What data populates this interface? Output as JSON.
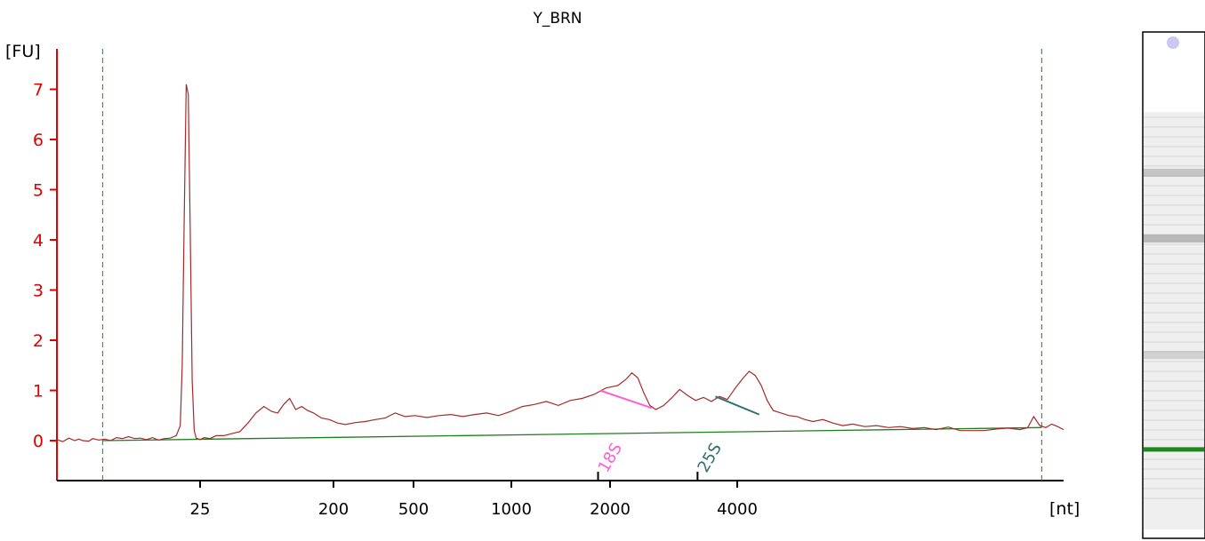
{
  "chart_data": {
    "type": "line",
    "title": "Y_BRN",
    "ylabel": "[FU]",
    "xlabel": "[nt]",
    "yticks": [
      0,
      1,
      2,
      3,
      4,
      5,
      6,
      7
    ],
    "ytick_labels": [
      "0",
      "1",
      "2",
      "3",
      "4",
      "5",
      "6",
      "7"
    ],
    "xticks": [
      "25",
      "200",
      "500",
      "1000",
      "2000",
      "4000"
    ],
    "ylim": [
      -0.8,
      7.9
    ],
    "axis_color": "#e00000",
    "trace_color": "#a52a2a",
    "baseline_color": "#1e7f1e",
    "marker_color": "#3c9a3c",
    "series": [
      {
        "values": [
          [
            0,
            0.02
          ],
          [
            3,
            -0.02
          ],
          [
            6,
            0.05
          ],
          [
            9,
            0.0
          ],
          [
            11,
            0.03
          ],
          [
            13,
            0.0
          ],
          [
            16,
            -0.01
          ],
          [
            18,
            0.04
          ],
          [
            21,
            0.01
          ],
          [
            24,
            0.03
          ],
          [
            27,
            0.0
          ],
          [
            30,
            0.06
          ],
          [
            33,
            0.04
          ],
          [
            36,
            0.08
          ],
          [
            39,
            0.04
          ],
          [
            42,
            0.05
          ],
          [
            45,
            0.02
          ],
          [
            48,
            0.06
          ],
          [
            51,
            0.01
          ],
          [
            54,
            0.04
          ],
          [
            57,
            0.05
          ],
          [
            60,
            0.1
          ],
          [
            62,
            0.3
          ],
          [
            63,
            1.5
          ],
          [
            64,
            4.5
          ],
          [
            65,
            7.1
          ],
          [
            66,
            6.9
          ],
          [
            67,
            4.2
          ],
          [
            68,
            1.2
          ],
          [
            69,
            0.2
          ],
          [
            70,
            0.05
          ],
          [
            72,
            0.02
          ],
          [
            74,
            0.06
          ],
          [
            77,
            0.04
          ],
          [
            80,
            0.1
          ],
          [
            84,
            0.1
          ],
          [
            88,
            0.14
          ],
          [
            92,
            0.18
          ],
          [
            96,
            0.35
          ],
          [
            100,
            0.55
          ],
          [
            104,
            0.68
          ],
          [
            108,
            0.58
          ],
          [
            111,
            0.55
          ],
          [
            114,
            0.72
          ],
          [
            117,
            0.84
          ],
          [
            120,
            0.62
          ],
          [
            123,
            0.68
          ],
          [
            126,
            0.6
          ],
          [
            129,
            0.55
          ],
          [
            133,
            0.45
          ],
          [
            137,
            0.42
          ],
          [
            141,
            0.35
          ],
          [
            145,
            0.32
          ],
          [
            150,
            0.36
          ],
          [
            155,
            0.38
          ],
          [
            160,
            0.42
          ],
          [
            165,
            0.45
          ],
          [
            170,
            0.55
          ],
          [
            175,
            0.48
          ],
          [
            180,
            0.5
          ],
          [
            186,
            0.46
          ],
          [
            192,
            0.5
          ],
          [
            198,
            0.52
          ],
          [
            204,
            0.48
          ],
          [
            210,
            0.52
          ],
          [
            216,
            0.55
          ],
          [
            222,
            0.5
          ],
          [
            228,
            0.58
          ],
          [
            234,
            0.68
          ],
          [
            240,
            0.72
          ],
          [
            246,
            0.78
          ],
          [
            252,
            0.7
          ],
          [
            258,
            0.8
          ],
          [
            264,
            0.84
          ],
          [
            270,
            0.92
          ],
          [
            276,
            1.05
          ],
          [
            282,
            1.1
          ],
          [
            286,
            1.22
          ],
          [
            289,
            1.35
          ],
          [
            292,
            1.25
          ],
          [
            295,
            0.95
          ],
          [
            298,
            0.7
          ],
          [
            301,
            0.62
          ],
          [
            305,
            0.7
          ],
          [
            309,
            0.85
          ],
          [
            313,
            1.02
          ],
          [
            317,
            0.9
          ],
          [
            321,
            0.8
          ],
          [
            325,
            0.86
          ],
          [
            329,
            0.78
          ],
          [
            333,
            0.88
          ],
          [
            337,
            0.82
          ],
          [
            341,
            1.05
          ],
          [
            345,
            1.25
          ],
          [
            348,
            1.38
          ],
          [
            351,
            1.3
          ],
          [
            354,
            1.1
          ],
          [
            357,
            0.8
          ],
          [
            360,
            0.6
          ],
          [
            364,
            0.55
          ],
          [
            368,
            0.5
          ],
          [
            372,
            0.48
          ],
          [
            376,
            0.42
          ],
          [
            380,
            0.38
          ],
          [
            385,
            0.42
          ],
          [
            390,
            0.35
          ],
          [
            395,
            0.3
          ],
          [
            400,
            0.33
          ],
          [
            406,
            0.28
          ],
          [
            412,
            0.3
          ],
          [
            418,
            0.26
          ],
          [
            424,
            0.28
          ],
          [
            430,
            0.24
          ],
          [
            436,
            0.26
          ],
          [
            442,
            0.22
          ],
          [
            448,
            0.27
          ],
          [
            454,
            0.2
          ],
          [
            460,
            0.2
          ],
          [
            466,
            0.2
          ],
          [
            472,
            0.23
          ],
          [
            478,
            0.25
          ],
          [
            484,
            0.22
          ],
          [
            488,
            0.26
          ],
          [
            491,
            0.48
          ],
          [
            494,
            0.3
          ],
          [
            497,
            0.26
          ],
          [
            500,
            0.33
          ],
          [
            503,
            0.28
          ],
          [
            506,
            0.22
          ]
        ]
      }
    ],
    "baseline": [
      [
        23,
        0.0
      ],
      [
        495,
        0.26
      ]
    ],
    "marker_lines": [
      23,
      495
    ],
    "peaks": [
      {
        "label": "18S",
        "tick_x": 272,
        "color": "#ff5fd0",
        "slope_from": [
          273,
          1.0
        ],
        "slope_to": [
          299,
          0.65
        ]
      },
      {
        "label": "25S",
        "tick_x": 322,
        "color": "#2f6f6f",
        "slope_from": [
          331,
          0.88
        ],
        "slope_to": [
          353,
          0.52
        ]
      }
    ],
    "gel": {
      "bands": [
        {
          "pos": 0.27,
          "strength": 0.35
        },
        {
          "pos": 0.4,
          "strength": 0.45
        },
        {
          "pos": 0.63,
          "strength": 0.25
        },
        {
          "pos": 0.82,
          "strength": 1.0,
          "color": "#1a8a1a"
        }
      ]
    }
  }
}
